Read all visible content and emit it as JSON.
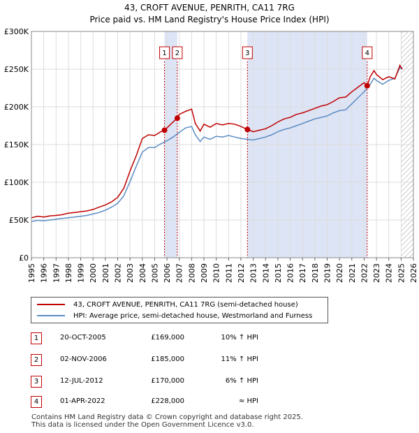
{
  "title": "43, CROFT AVENUE, PENRITH, CA11 7RG",
  "subtitle": "Price paid vs. HM Land Registry's House Price Index (HPI)",
  "colors": {
    "property": "#c00000",
    "hpi": "#5b8cc4",
    "shade": "#dde4f5",
    "marker": "#c00000"
  },
  "chart_data": {
    "type": "line",
    "title": "43, CROFT AVENUE, PENRITH, CA11 7RG",
    "subtitle": "Price paid vs. HM Land Registry's House Price Index (HPI)",
    "xlim": [
      1995,
      2026
    ],
    "ylim": [
      0,
      300000
    ],
    "y_ticks": [
      0,
      50000,
      100000,
      150000,
      200000,
      250000,
      300000
    ],
    "y_tick_labels": [
      "£0",
      "£50K",
      "£100K",
      "£150K",
      "£200K",
      "£250K",
      "£300K"
    ],
    "x_ticks": [
      1995,
      1996,
      1997,
      1998,
      1999,
      2000,
      2001,
      2002,
      2003,
      2004,
      2005,
      2006,
      2007,
      2008,
      2009,
      2010,
      2011,
      2012,
      2013,
      2014,
      2015,
      2016,
      2017,
      2018,
      2019,
      2020,
      2021,
      2022,
      2023,
      2024,
      2025,
      2026
    ],
    "x_tick_labels": [
      "1995",
      "1996",
      "1997",
      "1998",
      "1999",
      "2000",
      "2001",
      "2002",
      "2003",
      "2004",
      "2005",
      "2006",
      "2007",
      "2008",
      "2009",
      "2010",
      "2011",
      "2012",
      "2013",
      "2014",
      "2015",
      "2016",
      "2017",
      "2018",
      "2019",
      "2020",
      "2021",
      "2022",
      "2023",
      "2024",
      "2025",
      "2026"
    ],
    "grid": true,
    "shaded_regions": [
      [
        2005.8,
        2006.84
      ],
      [
        2012.53,
        2022.25
      ]
    ],
    "hatched_after": 2025.0,
    "series": [
      {
        "name": "43, CROFT AVENUE, PENRITH, CA11 7RG (semi-detached house)",
        "color": "#c00000",
        "x": [
          1995,
          1995.5,
          1996,
          1996.5,
          1997,
          1997.5,
          1998,
          1998.5,
          1999,
          1999.5,
          2000,
          2000.5,
          2001,
          2001.5,
          2002,
          2002.5,
          2003,
          2003.5,
          2004,
          2004.5,
          2005,
          2005.5,
          2005.8,
          2006,
          2006.5,
          2006.84,
          2007,
          2007.5,
          2008,
          2008.3,
          2008.7,
          2009,
          2009.5,
          2010,
          2010.5,
          2011,
          2011.5,
          2012,
          2012.53,
          2013,
          2013.5,
          2014,
          2014.5,
          2015,
          2015.5,
          2016,
          2016.5,
          2017,
          2017.5,
          2018,
          2018.5,
          2019,
          2019.5,
          2020,
          2020.5,
          2021,
          2021.5,
          2022,
          2022.25,
          2022.5,
          2022.8,
          2023,
          2023.5,
          2024,
          2024.5,
          2024.9,
          2025.1
        ],
        "values": [
          53000,
          55000,
          54000,
          55500,
          56000,
          57000,
          59000,
          60000,
          61000,
          62000,
          64000,
          67000,
          70000,
          74000,
          80000,
          92000,
          115000,
          135000,
          158000,
          163000,
          162000,
          167000,
          169000,
          172000,
          180000,
          185000,
          190000,
          194000,
          197000,
          178000,
          168000,
          177000,
          173000,
          178000,
          176000,
          178000,
          177000,
          174000,
          170000,
          167000,
          169000,
          171000,
          175000,
          180000,
          184000,
          186000,
          190000,
          192000,
          195000,
          198000,
          201000,
          203000,
          207000,
          212000,
          213000,
          220000,
          226000,
          232000,
          228000,
          240000,
          248000,
          243000,
          236000,
          240000,
          237000,
          255000,
          250000
        ]
      },
      {
        "name": "HPI: Average price, semi-detached house, Westmorland and Furness",
        "color": "#5b8cc4",
        "x": [
          1995,
          1995.5,
          1996,
          1996.5,
          1997,
          1997.5,
          1998,
          1998.5,
          1999,
          1999.5,
          2000,
          2000.5,
          2001,
          2001.5,
          2002,
          2002.5,
          2003,
          2003.5,
          2004,
          2004.5,
          2005,
          2005.5,
          2006,
          2006.5,
          2007,
          2007.5,
          2008,
          2008.3,
          2008.7,
          2009,
          2009.5,
          2010,
          2010.5,
          2011,
          2011.5,
          2012,
          2012.5,
          2013,
          2013.5,
          2014,
          2014.5,
          2015,
          2015.5,
          2016,
          2016.5,
          2017,
          2017.5,
          2018,
          2018.5,
          2019,
          2019.5,
          2020,
          2020.5,
          2021,
          2021.5,
          2022,
          2022.5,
          2022.8,
          2023,
          2023.5,
          2024,
          2024.5,
          2024.9,
          2025.1
        ],
        "values": [
          48000,
          49500,
          49000,
          50000,
          51000,
          52000,
          53000,
          54000,
          55000,
          56000,
          58000,
          60000,
          63000,
          67000,
          72000,
          82000,
          101000,
          121000,
          140000,
          146000,
          146000,
          151000,
          155000,
          160000,
          166000,
          172000,
          174000,
          163000,
          154000,
          160000,
          157000,
          161000,
          160000,
          162000,
          160000,
          158000,
          157000,
          156000,
          158000,
          160000,
          163000,
          167000,
          170000,
          172000,
          175000,
          178000,
          181000,
          184000,
          186000,
          188000,
          192000,
          195000,
          196000,
          204000,
          212000,
          220000,
          230000,
          238000,
          235000,
          230000,
          235000,
          238000,
          252000,
          250000
        ]
      }
    ],
    "transactions": [
      {
        "marker": "1",
        "x": 2005.8,
        "price": 169000
      },
      {
        "marker": "2",
        "x": 2006.84,
        "price": 185000
      },
      {
        "marker": "3",
        "x": 2012.53,
        "price": 170000
      },
      {
        "marker": "4",
        "x": 2022.25,
        "price": 228000
      }
    ]
  },
  "legend": {
    "property_label": "43, CROFT AVENUE, PENRITH, CA11 7RG (semi-detached house)",
    "hpi_label": "HPI: Average price, semi-detached house, Westmorland and Furness"
  },
  "transactions": [
    {
      "num": "1",
      "date": "20-OCT-2005",
      "price": "£169,000",
      "hpi": "10% ↑ HPI"
    },
    {
      "num": "2",
      "date": "02-NOV-2006",
      "price": "£185,000",
      "hpi": "11% ↑ HPI"
    },
    {
      "num": "3",
      "date": "12-JUL-2012",
      "price": "£170,000",
      "hpi": "6% ↑ HPI"
    },
    {
      "num": "4",
      "date": "01-APR-2022",
      "price": "£228,000",
      "hpi": "≈ HPI"
    }
  ],
  "footer": {
    "line1": "Contains HM Land Registry data © Crown copyright and database right 2025.",
    "line2": "This data is licensed under the Open Government Licence v3.0."
  }
}
